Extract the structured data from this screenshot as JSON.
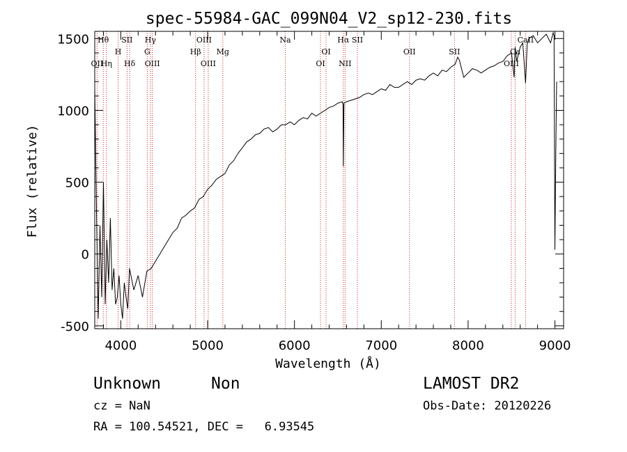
{
  "chart_data": {
    "type": "line",
    "title": "spec-55984-GAC_099N04_V2_sp12-230.fits",
    "xlabel": "Wavelength (Å)",
    "ylabel": "Flux (relative)",
    "xlim": [
      3700,
      9100
    ],
    "ylim": [
      -520,
      1550
    ],
    "x_ticks": [
      4000,
      5000,
      6000,
      7000,
      8000,
      9000
    ],
    "y_ticks": [
      -500,
      0,
      500,
      1000,
      1500
    ],
    "grid": false,
    "series": [
      {
        "x": [
          3700,
          3720,
          3740,
          3760,
          3780,
          3800,
          3820,
          3840,
          3860,
          3880,
          3900,
          3920,
          3940,
          3960,
          3980,
          4000,
          4020,
          4040,
          4060,
          4080,
          4100,
          4150,
          4200,
          4250,
          4300,
          4350,
          4400,
          4450,
          4500,
          4550,
          4600,
          4650,
          4700,
          4750,
          4800,
          4850,
          4900,
          4950,
          5000,
          5050,
          5100,
          5150,
          5200,
          5250,
          5300,
          5350,
          5400,
          5450,
          5500,
          5550,
          5600,
          5650,
          5700,
          5750,
          5800,
          5850,
          5900,
          5950,
          6000,
          6050,
          6100,
          6150,
          6200,
          6250,
          6300,
          6350,
          6400,
          6450,
          6500,
          6550,
          6560,
          6563,
          6570,
          6600,
          6650,
          6700,
          6750,
          6800,
          6850,
          6900,
          6950,
          7000,
          7050,
          7100,
          7150,
          7200,
          7250,
          7300,
          7350,
          7400,
          7450,
          7500,
          7550,
          7600,
          7650,
          7700,
          7750,
          7800,
          7850,
          7880,
          7900,
          7950,
          8000,
          8050,
          8100,
          8150,
          8200,
          8250,
          8300,
          8350,
          8400,
          8450,
          8500,
          8530,
          8542,
          8560,
          8600,
          8630,
          8662,
          8680,
          8700,
          8750,
          8800,
          8850,
          8900,
          8950,
          8980,
          8990,
          9000,
          9010,
          9020
        ],
        "y": [
          1150,
          300,
          -450,
          200,
          -300,
          500,
          -350,
          100,
          -200,
          250,
          -250,
          -100,
          -350,
          -300,
          -150,
          -350,
          -450,
          -200,
          -300,
          -380,
          -100,
          -250,
          -150,
          -300,
          -120,
          -100,
          -50,
          0,
          50,
          100,
          150,
          180,
          250,
          270,
          300,
          320,
          380,
          400,
          450,
          480,
          520,
          540,
          560,
          620,
          650,
          700,
          740,
          780,
          800,
          830,
          840,
          870,
          880,
          850,
          870,
          900,
          900,
          920,
          900,
          930,
          950,
          940,
          980,
          960,
          980,
          1000,
          1020,
          1030,
          1050,
          1060,
          1040,
          610,
          1050,
          1060,
          1070,
          1080,
          1090,
          1110,
          1120,
          1110,
          1130,
          1150,
          1140,
          1180,
          1160,
          1160,
          1180,
          1200,
          1180,
          1210,
          1220,
          1210,
          1240,
          1260,
          1240,
          1280,
          1270,
          1300,
          1320,
          1370,
          1350,
          1230,
          1260,
          1290,
          1280,
          1260,
          1280,
          1300,
          1310,
          1330,
          1340,
          1380,
          1400,
          1230,
          1440,
          1340,
          1440,
          1470,
          1190,
          1460,
          1500,
          1520,
          1470,
          1500,
          1530,
          1470,
          1540,
          1520,
          30,
          700,
          1200
        ]
      }
    ],
    "lines": [
      {
        "label": "Hθ",
        "x": 3798,
        "row": 0
      },
      {
        "label": "OII",
        "x": 3727,
        "row": 2
      },
      {
        "label": "Hη",
        "x": 3835,
        "row": 2
      },
      {
        "label": "SII",
        "x": 4072,
        "row": 0
      },
      {
        "label": "H",
        "x": 3969,
        "row": 1
      },
      {
        "label": "Hδ",
        "x": 4102,
        "row": 2
      },
      {
        "label": "Hγ",
        "x": 4341,
        "row": 0
      },
      {
        "label": "G",
        "x": 4305,
        "row": 1
      },
      {
        "label": "OIII",
        "x": 4363,
        "row": 2
      },
      {
        "label": "OIII",
        "x": 4959,
        "row": 0
      },
      {
        "label": "Hβ",
        "x": 4861,
        "row": 1
      },
      {
        "label": "OIII",
        "x": 5007,
        "row": 2
      },
      {
        "label": "Mg",
        "x": 5175,
        "row": 1
      },
      {
        "label": "Na",
        "x": 5894,
        "row": 0
      },
      {
        "label": "OI",
        "x": 6364,
        "row": 1
      },
      {
        "label": "OI",
        "x": 6300,
        "row": 2
      },
      {
        "label": "Hα",
        "x": 6563,
        "row": 0
      },
      {
        "label": "SII",
        "x": 6725,
        "row": 0
      },
      {
        "label": "NII",
        "x": 6583,
        "row": 2
      },
      {
        "label": "OII",
        "x": 7325,
        "row": 1
      },
      {
        "label": "SII",
        "x": 7843,
        "row": 1
      },
      {
        "label": "Ca",
        "x": 8542,
        "row": 1
      },
      {
        "label": "CaII",
        "x": 8662,
        "row": 0
      },
      {
        "label": "OIII",
        "x": 8498,
        "row": 2
      }
    ],
    "line_color": "#c81e1e"
  },
  "info": {
    "obj_class": "Unknown",
    "obj_subclass": "Non",
    "survey": "LAMOST DR2",
    "cz": "cz = NaN",
    "obs_date": "Obs-Date: 20120226",
    "radec": "RA = 100.54521, DEC =   6.93545"
  }
}
